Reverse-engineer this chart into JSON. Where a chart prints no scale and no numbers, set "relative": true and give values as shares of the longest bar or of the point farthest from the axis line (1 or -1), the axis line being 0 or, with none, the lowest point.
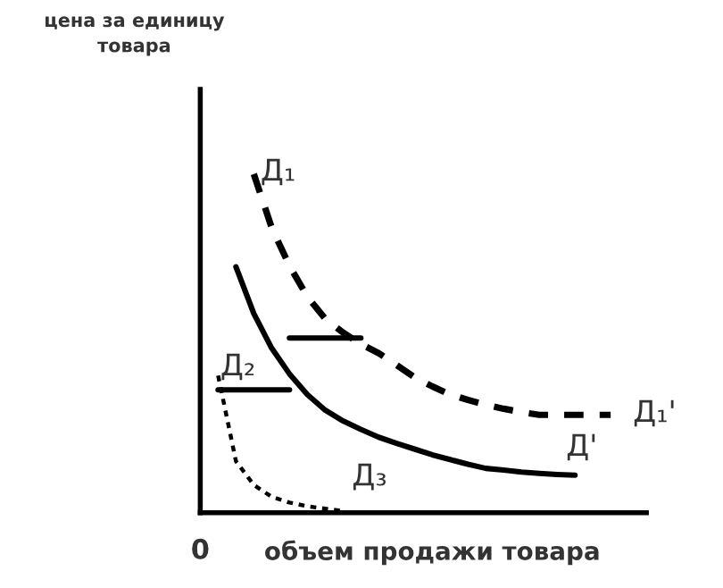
{
  "chart_data": {
    "type": "line",
    "relative": true,
    "xlabel": "объем продажи товара",
    "marker": "none",
    "categories": [
      null,
      null,
      null,
      null,
      null,
      null,
      null,
      null,
      null,
      null,
      null,
      null,
      null,
      null,
      null,
      null,
      null,
      null,
      null,
      null,
      null,
      null,
      null,
      null,
      null,
      null
    ],
    "series": [
      {
        "color": "#000000",
        "line_style": "dashed",
        "values": [
          null,
          null,
          null,
          1.0,
          0.842,
          0.729,
          0.638,
          0.573,
          0.532,
          0.498,
          0.471,
          0.436,
          0.4,
          0.373,
          0.349,
          0.333,
          0.319,
          0.307,
          0.297,
          0.289,
          0.289,
          0.289,
          0.289,
          0.289,
          null,
          null
        ]
      },
      {
        "color": "#000000",
        "line_style": "solid",
        "values": [
          null,
          null,
          0.726,
          0.588,
          0.486,
          0.41,
          0.349,
          0.303,
          0.271,
          0.246,
          0.223,
          0.205,
          0.188,
          0.171,
          0.157,
          0.143,
          0.131,
          0.126,
          0.12,
          0.116,
          0.113,
          0.111,
          null,
          null,
          null,
          null
        ]
      },
      {
        "color": "#000000",
        "line_style": "dotted",
        "values": [
          null,
          0.405,
          0.152,
          0.082,
          0.047,
          0.03,
          0.019,
          0.012,
          0.005,
          null,
          null,
          null,
          null,
          null,
          null,
          null,
          null,
          null,
          null,
          null,
          null,
          null,
          null,
          null,
          null,
          null
        ]
      },
      {
        "color": "#000000",
        "line_style": "solid",
        "values": [
          null,
          null,
          null,
          null,
          null,
          0.516,
          0.516,
          0.516,
          0.516,
          0.516,
          null,
          null,
          null,
          null,
          null,
          null,
          null,
          null,
          null,
          null,
          null,
          null,
          null,
          null,
          null,
          null
        ]
      },
      {
        "color": "#000000",
        "line_style": "solid",
        "values": [
          null,
          0.363,
          0.363,
          0.363,
          0.363,
          0.363,
          null,
          null,
          null,
          null,
          null,
          null,
          null,
          null,
          null,
          null,
          null,
          null,
          null,
          null,
          null,
          null,
          null,
          null,
          null,
          null
        ]
      }
    ],
    "annotations": [
      "цена за единицу\nтовара",
      "Д₁",
      "Д₂",
      "Д₃",
      "Д'",
      "Д₁'",
      "0"
    ]
  }
}
